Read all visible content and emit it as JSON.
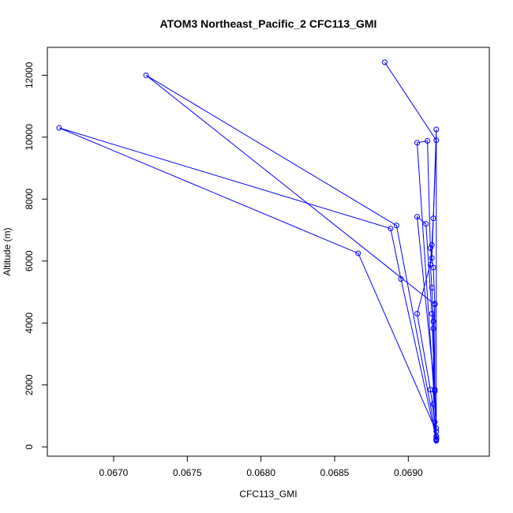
{
  "chart_data": {
    "type": "line",
    "title": "ATOM3 Northeast_Pacific_2 CFC113_GMI",
    "xlabel": "CFC113_GMI",
    "ylabel": "Altitude (m)",
    "xlim": [
      0.06655,
      0.06955
    ],
    "ylim": [
      -300,
      12900
    ],
    "x_ticks": [
      0.067,
      0.0675,
      0.068,
      0.0685,
      0.069
    ],
    "x_tick_labels": [
      "0.0670",
      "0.0675",
      "0.0680",
      "0.0685",
      "0.0690"
    ],
    "y_ticks": [
      0,
      2000,
      4000,
      6000,
      8000,
      10000,
      12000
    ],
    "y_tick_labels": [
      "0",
      "2000",
      "4000",
      "6000",
      "8000",
      "10000",
      "12000"
    ],
    "grid": false,
    "colors": {
      "series": "#0000ff",
      "axis": "#000000"
    },
    "series": [
      {
        "x": [
          0.06919,
          0.06918,
          0.06915,
          0.06906,
          0.06916,
          0.06919,
          0.06884
        ],
        "y": [
          220,
          800,
          1850,
          4300,
          6100,
          9900,
          12420
        ]
      },
      {
        "x": [
          0.06919,
          0.06917,
          0.06917,
          0.06918,
          0.06722,
          0.06892,
          0.06919
        ],
        "y": [
          230,
          1380,
          3820,
          4600,
          12000,
          7150,
          350
        ]
      },
      {
        "x": [
          0.06919,
          0.06918,
          0.06918,
          0.06917,
          0.06915,
          0.06913,
          0.06906,
          0.06919
        ],
        "y": [
          300,
          1850,
          4620,
          5790,
          6420,
          9880,
          9820,
          600
        ]
      },
      {
        "x": [
          0.06919,
          0.06895,
          0.06888,
          0.06663,
          0.06866,
          0.06919
        ],
        "y": [
          250,
          5420,
          7050,
          10300,
          6250,
          500
        ]
      },
      {
        "x": [
          0.06919,
          0.06917,
          0.06916,
          0.06915,
          0.06916,
          0.06917,
          0.06919,
          0.06919
        ],
        "y": [
          200,
          4050,
          5140,
          5880,
          6520,
          7380,
          10250,
          250
        ]
      },
      {
        "x": [
          0.06919,
          0.06916,
          0.06912,
          0.06906,
          0.06918
        ],
        "y": [
          300,
          4300,
          7200,
          7430,
          1800
        ]
      }
    ]
  }
}
